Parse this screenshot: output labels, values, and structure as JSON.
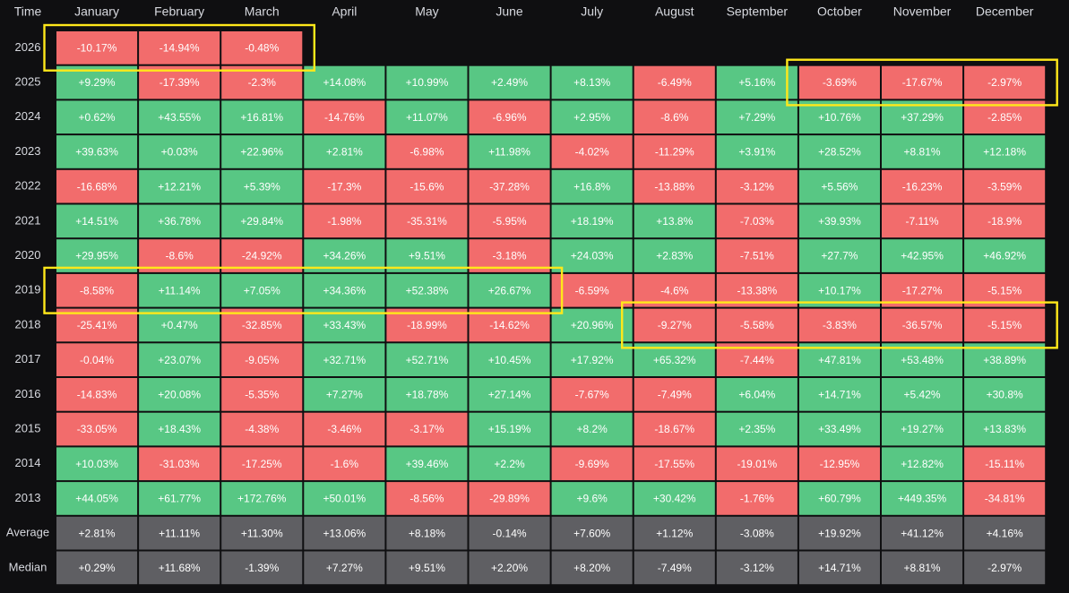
{
  "chart_data": {
    "type": "heatmap",
    "title": "",
    "corner_label": "Time",
    "columns": [
      "January",
      "February",
      "March",
      "April",
      "May",
      "June",
      "July",
      "August",
      "September",
      "October",
      "November",
      "December"
    ],
    "rows": [
      {
        "label": "2026",
        "kind": "year",
        "values": [
          "-10.17%",
          "-14.94%",
          "-0.48%",
          null,
          null,
          null,
          null,
          null,
          null,
          null,
          null,
          null
        ]
      },
      {
        "label": "2025",
        "kind": "year",
        "values": [
          "+9.29%",
          "-17.39%",
          "-2.3%",
          "+14.08%",
          "+10.99%",
          "+2.49%",
          "+8.13%",
          "-6.49%",
          "+5.16%",
          "-3.69%",
          "-17.67%",
          "-2.97%"
        ]
      },
      {
        "label": "2024",
        "kind": "year",
        "values": [
          "+0.62%",
          "+43.55%",
          "+16.81%",
          "-14.76%",
          "+11.07%",
          "-6.96%",
          "+2.95%",
          "-8.6%",
          "+7.29%",
          "+10.76%",
          "+37.29%",
          "-2.85%"
        ]
      },
      {
        "label": "2023",
        "kind": "year",
        "values": [
          "+39.63%",
          "+0.03%",
          "+22.96%",
          "+2.81%",
          "-6.98%",
          "+11.98%",
          "-4.02%",
          "-11.29%",
          "+3.91%",
          "+28.52%",
          "+8.81%",
          "+12.18%"
        ]
      },
      {
        "label": "2022",
        "kind": "year",
        "values": [
          "-16.68%",
          "+12.21%",
          "+5.39%",
          "-17.3%",
          "-15.6%",
          "-37.28%",
          "+16.8%",
          "-13.88%",
          "-3.12%",
          "+5.56%",
          "-16.23%",
          "-3.59%"
        ]
      },
      {
        "label": "2021",
        "kind": "year",
        "values": [
          "+14.51%",
          "+36.78%",
          "+29.84%",
          "-1.98%",
          "-35.31%",
          "-5.95%",
          "+18.19%",
          "+13.8%",
          "-7.03%",
          "+39.93%",
          "-7.11%",
          "-18.9%"
        ]
      },
      {
        "label": "2020",
        "kind": "year",
        "values": [
          "+29.95%",
          "-8.6%",
          "-24.92%",
          "+34.26%",
          "+9.51%",
          "-3.18%",
          "+24.03%",
          "+2.83%",
          "-7.51%",
          "+27.7%",
          "+42.95%",
          "+46.92%"
        ]
      },
      {
        "label": "2019",
        "kind": "year",
        "values": [
          "-8.58%",
          "+11.14%",
          "+7.05%",
          "+34.36%",
          "+52.38%",
          "+26.67%",
          "-6.59%",
          "-4.6%",
          "-13.38%",
          "+10.17%",
          "-17.27%",
          "-5.15%"
        ]
      },
      {
        "label": "2018",
        "kind": "year",
        "values": [
          "-25.41%",
          "+0.47%",
          "-32.85%",
          "+33.43%",
          "-18.99%",
          "-14.62%",
          "+20.96%",
          "-9.27%",
          "-5.58%",
          "-3.83%",
          "-36.57%",
          "-5.15%"
        ]
      },
      {
        "label": "2017",
        "kind": "year",
        "values": [
          "-0.04%",
          "+23.07%",
          "-9.05%",
          "+32.71%",
          "+52.71%",
          "+10.45%",
          "+17.92%",
          "+65.32%",
          "-7.44%",
          "+47.81%",
          "+53.48%",
          "+38.89%"
        ]
      },
      {
        "label": "2016",
        "kind": "year",
        "values": [
          "-14.83%",
          "+20.08%",
          "-5.35%",
          "+7.27%",
          "+18.78%",
          "+27.14%",
          "-7.67%",
          "-7.49%",
          "+6.04%",
          "+14.71%",
          "+5.42%",
          "+30.8%"
        ]
      },
      {
        "label": "2015",
        "kind": "year",
        "values": [
          "-33.05%",
          "+18.43%",
          "-4.38%",
          "-3.46%",
          "-3.17%",
          "+15.19%",
          "+8.2%",
          "-18.67%",
          "+2.35%",
          "+33.49%",
          "+19.27%",
          "+13.83%"
        ]
      },
      {
        "label": "2014",
        "kind": "year",
        "values": [
          "+10.03%",
          "-31.03%",
          "-17.25%",
          "-1.6%",
          "+39.46%",
          "+2.2%",
          "-9.69%",
          "-17.55%",
          "-19.01%",
          "-12.95%",
          "+12.82%",
          "-15.11%"
        ]
      },
      {
        "label": "2013",
        "kind": "year",
        "values": [
          "+44.05%",
          "+61.77%",
          "+172.76%",
          "+50.01%",
          "-8.56%",
          "-29.89%",
          "+9.6%",
          "+30.42%",
          "-1.76%",
          "+60.79%",
          "+449.35%",
          "-34.81%"
        ]
      },
      {
        "label": "Average",
        "kind": "summary",
        "values": [
          "+2.81%",
          "+11.11%",
          "+11.30%",
          "+13.06%",
          "+8.18%",
          "-0.14%",
          "+7.60%",
          "+1.12%",
          "-3.08%",
          "+19.92%",
          "+41.12%",
          "+4.16%"
        ]
      },
      {
        "label": "Median",
        "kind": "summary",
        "values": [
          "+0.29%",
          "+11.68%",
          "-1.39%",
          "+7.27%",
          "+9.51%",
          "+2.20%",
          "+8.20%",
          "-7.49%",
          "-3.12%",
          "+14.71%",
          "+8.81%",
          "-2.97%"
        ]
      }
    ],
    "highlights": [
      {
        "row": "2026",
        "from": "January",
        "to": "March"
      },
      {
        "row": "2025",
        "from": "October",
        "to": "December"
      },
      {
        "row": "2019",
        "from": "January",
        "to": "June"
      },
      {
        "row": "2018",
        "from": "August",
        "to": "December"
      }
    ]
  },
  "colors": {
    "background": "#0f0f11",
    "positive": "#58c784",
    "negative": "#f26c6c",
    "summary": "#5f5f63",
    "header_text": "#d7d9df",
    "cell_text": "#ffffff",
    "highlight": "#ffe81a"
  }
}
